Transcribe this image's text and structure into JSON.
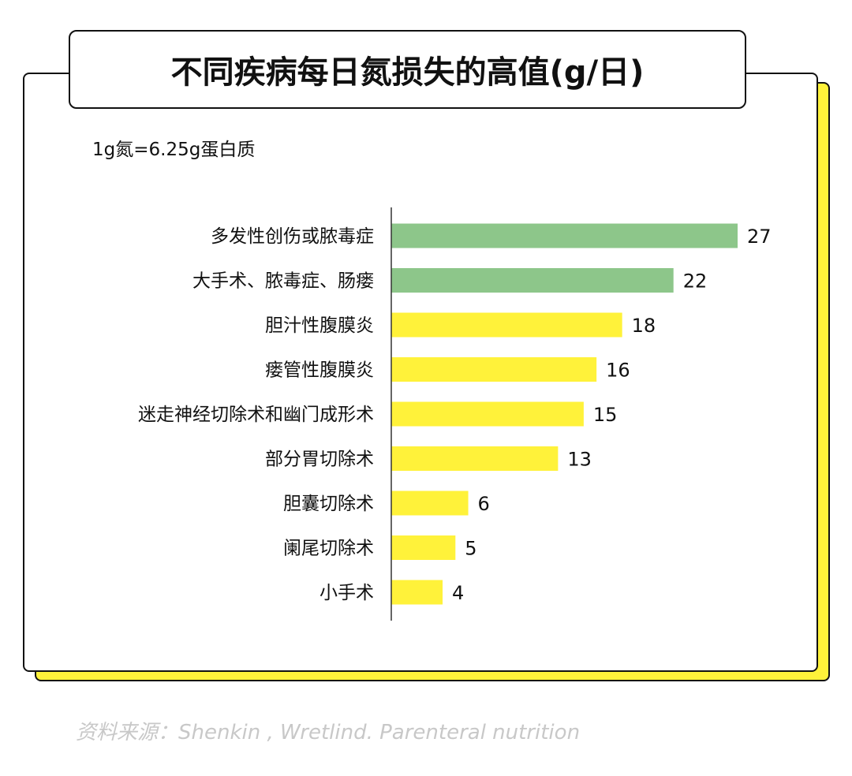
{
  "chart_data": {
    "type": "bar",
    "orientation": "horizontal",
    "title": "不同疾病每日氮损失的高值(g/日)",
    "subtitle": "1g氮=6.25g蛋白质",
    "categories": [
      "多发性创伤或脓毒症",
      "大手术、脓毒症、肠瘘",
      "胆汁性腹膜炎",
      "瘘管性腹膜炎",
      "迷走神经切除术和幽门成形术",
      "部分胃切除术",
      "胆囊切除术",
      "阑尾切除术",
      "小手术"
    ],
    "values": [
      27,
      22,
      18,
      16,
      15,
      13,
      6,
      5,
      4
    ],
    "colors": [
      "#8dc68a",
      "#8dc68a",
      "#fff23a",
      "#fff23a",
      "#fff23a",
      "#fff23a",
      "#fff23a",
      "#fff23a",
      "#fff23a"
    ],
    "xlim": [
      0,
      27
    ],
    "grid": false,
    "data_labels": true
  },
  "source": "资料来源：Shenkin , Wretlind. Parenteral nutrition"
}
